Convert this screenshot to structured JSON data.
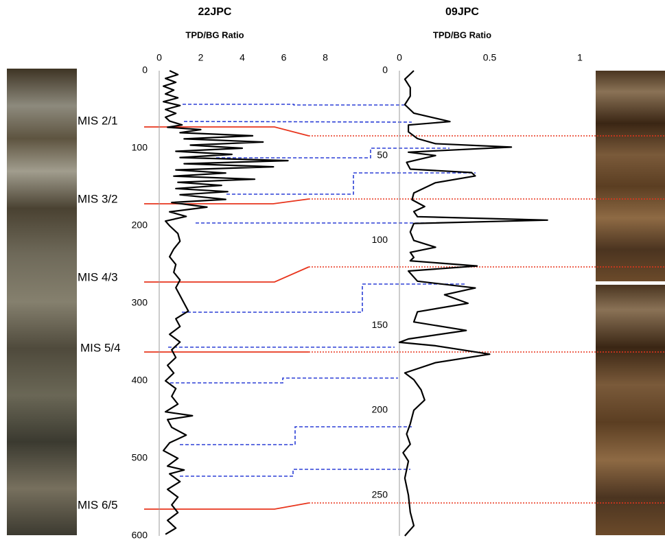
{
  "chart_data": [
    {
      "type": "line",
      "title": "22JPC",
      "xlabel": "TPD/BG Ratio",
      "color": "#000000",
      "xlim": [
        0,
        8
      ],
      "xticks": [
        0,
        2,
        4,
        6,
        8
      ],
      "ylim": [
        0,
        600
      ],
      "yticks": [
        0,
        100,
        200,
        300,
        400,
        500,
        600
      ],
      "annotations": [
        "MIS 2/1",
        "MIS 3/2",
        "MIS 4/3",
        "MIS 5/4",
        "MIS 6/5"
      ],
      "x": [
        0,
        5,
        10,
        15,
        20,
        25,
        30,
        35,
        40,
        45,
        50,
        55,
        60,
        65,
        70,
        73,
        76,
        80,
        84,
        88,
        92,
        96,
        100,
        104,
        108,
        112,
        116,
        120,
        124,
        128,
        132,
        136,
        140,
        144,
        148,
        152,
        156,
        160,
        166,
        170,
        176,
        182,
        188,
        194,
        200,
        210,
        220,
        230,
        240,
        250,
        260,
        270,
        280,
        290,
        300,
        310,
        320,
        330,
        340,
        350,
        360,
        370,
        380,
        390,
        400,
        410,
        420,
        430,
        440,
        445,
        450,
        460,
        470,
        480,
        490,
        500,
        510,
        515,
        520,
        530,
        540,
        550,
        560,
        570,
        580,
        590,
        598
      ],
      "values": [
        0.5,
        0.9,
        0.3,
        0.8,
        0.2,
        0.7,
        0.3,
        0.9,
        0.2,
        1.0,
        0.3,
        0.8,
        0.3,
        0.5,
        1.1,
        0.4,
        2.0,
        1.0,
        4.5,
        1.2,
        5.0,
        1.5,
        4.0,
        0.8,
        3.5,
        1.0,
        6.2,
        1.2,
        5.5,
        0.8,
        3.2,
        0.7,
        4.6,
        0.9,
        3.0,
        0.8,
        3.3,
        1.0,
        3.2,
        0.6,
        2.3,
        0.5,
        1.3,
        0.3,
        0.5,
        0.9,
        1.0,
        0.7,
        0.5,
        0.8,
        0.7,
        1.0,
        0.8,
        1.0,
        1.2,
        1.4,
        0.8,
        1.0,
        0.5,
        1.0,
        0.6,
        0.8,
        0.4,
        0.7,
        0.3,
        0.8,
        0.6,
        0.9,
        0.3,
        1.6,
        0.4,
        0.6,
        1.3,
        0.5,
        0.2,
        0.9,
        0.4,
        1.2,
        0.5,
        1.0,
        0.4,
        0.9,
        0.6,
        0.9,
        0.4,
        0.8,
        0.3
      ]
    },
    {
      "type": "line",
      "title": "09JPC",
      "xlabel": "TPD/BG Ratio",
      "color": "#000000",
      "xlim": [
        0,
        1
      ],
      "xticks": [
        0,
        0.5,
        1
      ],
      "ylim": [
        0,
        274
      ],
      "yticks": [
        0,
        50,
        100,
        150,
        200,
        250
      ],
      "x": [
        0,
        5,
        10,
        15,
        20,
        25,
        30,
        32,
        36,
        40,
        43,
        45,
        48,
        50,
        54,
        58,
        60,
        62,
        66,
        72,
        76,
        80,
        83,
        86,
        88,
        90,
        95,
        100,
        104,
        107,
        110,
        112,
        115,
        118,
        124,
        128,
        132,
        137,
        142,
        148,
        153,
        158,
        160,
        162,
        167,
        172,
        178,
        182,
        188,
        194,
        200,
        208,
        214,
        220,
        225,
        230,
        240,
        250,
        260,
        268,
        274
      ],
      "values": [
        0.08,
        0.03,
        0.06,
        0.06,
        0.03,
        0.08,
        0.28,
        0.05,
        0.05,
        0.1,
        0.2,
        0.62,
        0.05,
        0.2,
        0.04,
        0.06,
        0.4,
        0.42,
        0.2,
        0.08,
        0.07,
        0.14,
        0.08,
        0.1,
        0.82,
        0.08,
        0.06,
        0.08,
        0.2,
        0.06,
        0.08,
        0.06,
        0.43,
        0.05,
        0.1,
        0.42,
        0.25,
        0.38,
        0.1,
        0.08,
        0.37,
        0.05,
        0,
        0.2,
        0.5,
        0.2,
        0.03,
        0.08,
        0.12,
        0.14,
        0.08,
        0.06,
        0.04,
        0.06,
        0.02,
        0.05,
        0.03,
        0.05,
        0.06,
        0.08,
        0.03
      ]
    }
  ]
}
